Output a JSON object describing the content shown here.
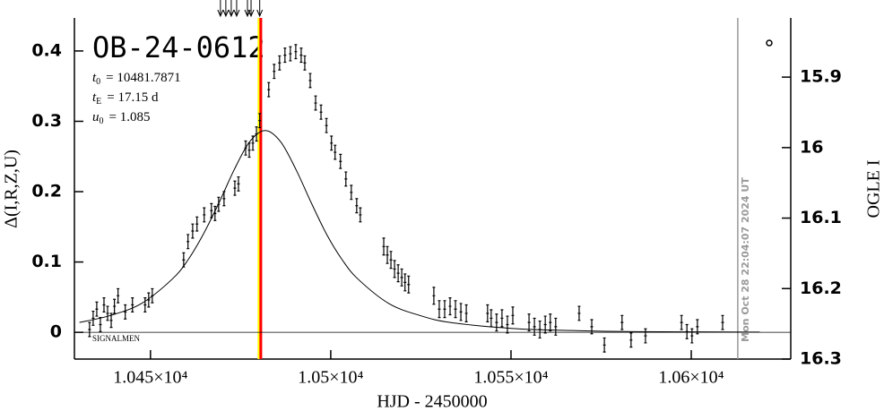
{
  "chart_data": {
    "type": "scatter",
    "title": "OB-24-0612",
    "parameters": [
      {
        "symbol": "t",
        "subscript": "0",
        "text": "= 10481.7871"
      },
      {
        "symbol": "t",
        "subscript": "E",
        "text": "= 17.15 d"
      },
      {
        "symbol": "u",
        "subscript": "0",
        "text": "= 1.085"
      }
    ],
    "source_label": "SIGNALMEN",
    "timestamp": "Mon Oct 28 22:04:07 2024 UT",
    "x_label": "HJD - 2450000",
    "y_label": "Δ(I,R,Z,U)",
    "y2_label": "OGLE I",
    "xlim": [
      10428.9,
      10627.6
    ],
    "ylim": [
      -0.038,
      0.447
    ],
    "y2lim": [
      16.3,
      15.816
    ],
    "xticks": [
      {
        "value": 10450,
        "label": "1.045×10⁴"
      },
      {
        "value": 10500,
        "label": "1.05×10⁴"
      },
      {
        "value": 10550,
        "label": "1.055×10⁴"
      },
      {
        "value": 10600,
        "label": "1.06×10⁴"
      }
    ],
    "yticks": [
      0,
      0.1,
      0.2,
      0.3,
      0.4
    ],
    "y2ticks": [
      15.9,
      16,
      16.1,
      16.2,
      16.3
    ],
    "color": "#000000",
    "x": [
      10433.1,
      10434.1,
      10435.1,
      10436.1,
      10437.1,
      10438.1,
      10439.1,
      10440.0,
      10441.0,
      10443.0,
      10445.0,
      10448.5,
      10449.5,
      10450.5,
      10459.2,
      10460.4,
      10461.7,
      10462.9,
      10464.9,
      10466.9,
      10467.9,
      10468.9,
      10470.4,
      10473.4,
      10474.4,
      10476.4,
      10477.4,
      10478.4,
      10479.4,
      10480.3,
      10482.8,
      10484.3,
      10485.8,
      10487.3,
      10488.8,
      10490.3,
      10491.8,
      10492.8,
      10494.3,
      10495.8,
      10497.3,
      10498.8,
      10500.2,
      10501.2,
      10502.7,
      10504.2,
      10505.7,
      10507.2,
      10508.2,
      10514.7,
      10515.7,
      10516.7,
      10517.7,
      10518.7,
      10519.7,
      10520.6,
      10521.6,
      10528.6,
      10530.1,
      10531.6,
      10533.1,
      10534.6,
      10536.1,
      10537.6,
      10543.5,
      10544.5,
      10546.0,
      10547.5,
      10549.0,
      10550.5,
      10555.0,
      10556.5,
      10558.0,
      10559.5,
      10560.9,
      10562.4,
      10568.9,
      10572.4,
      10575.9,
      10580.8,
      10583.3,
      10587.3,
      10597.3,
      10598.8,
      10600.2,
      10601.7,
      10608.7
    ],
    "values": [
      0.004,
      0.02,
      0.033,
      0.011,
      0.039,
      0.027,
      0.017,
      0.037,
      0.052,
      0.029,
      0.039,
      0.039,
      0.046,
      0.052,
      0.103,
      0.129,
      0.144,
      0.154,
      0.167,
      0.173,
      0.169,
      0.182,
      0.19,
      0.205,
      0.211,
      0.262,
      0.259,
      0.269,
      0.282,
      0.301,
      0.345,
      0.371,
      0.383,
      0.394,
      0.396,
      0.399,
      0.394,
      0.383,
      0.358,
      0.326,
      0.313,
      0.294,
      0.269,
      0.256,
      0.243,
      0.218,
      0.199,
      0.18,
      0.167,
      0.122,
      0.11,
      0.103,
      0.09,
      0.084,
      0.078,
      0.071,
      0.068,
      0.052,
      0.033,
      0.033,
      0.037,
      0.033,
      0.029,
      0.027,
      0.027,
      0.02,
      0.014,
      0.02,
      0.011,
      0.024,
      0.014,
      0.008,
      0.004,
      0.011,
      0.014,
      0.008,
      0.027,
      0.008,
      -0.018,
      0.014,
      -0.011,
      -0.005,
      0.014,
      0.001,
      -0.005,
      0.008,
      0.014
    ],
    "errors": [
      0.01,
      0.01,
      0.01,
      0.01,
      0.01,
      0.01,
      0.01,
      0.01,
      0.01,
      0.01,
      0.01,
      0.01,
      0.01,
      0.01,
      0.01,
      0.01,
      0.01,
      0.01,
      0.01,
      0.01,
      0.01,
      0.01,
      0.01,
      0.01,
      0.01,
      0.01,
      0.01,
      0.01,
      0.01,
      0.01,
      0.01,
      0.01,
      0.01,
      0.01,
      0.01,
      0.01,
      0.01,
      0.01,
      0.01,
      0.01,
      0.01,
      0.01,
      0.01,
      0.01,
      0.01,
      0.01,
      0.01,
      0.01,
      0.01,
      0.012,
      0.012,
      0.012,
      0.012,
      0.012,
      0.012,
      0.012,
      0.012,
      0.012,
      0.012,
      0.012,
      0.012,
      0.012,
      0.012,
      0.012,
      0.012,
      0.012,
      0.012,
      0.012,
      0.012,
      0.012,
      0.012,
      0.012,
      0.012,
      0.012,
      0.012,
      0.012,
      0.01,
      0.01,
      0.01,
      0.01,
      0.01,
      0.01,
      0.01,
      0.01,
      0.01,
      0.01,
      0.01
    ],
    "model": {
      "color": "#000000",
      "x": [
        10430.3,
        10438.9,
        10447.5,
        10456.1,
        10460.4,
        10464.6,
        10468.9,
        10473.2,
        10477.5,
        10481.8,
        10486.1,
        10490.4,
        10494.7,
        10498.9,
        10503.2,
        10507.5,
        10516.1,
        10524.7,
        10533.2,
        10550.4,
        10567.5,
        10584.7,
        10619.0
      ],
      "values": [
        0.014,
        0.024,
        0.041,
        0.076,
        0.103,
        0.139,
        0.183,
        0.231,
        0.271,
        0.287,
        0.271,
        0.231,
        0.183,
        0.139,
        0.103,
        0.076,
        0.041,
        0.024,
        0.014,
        0.0055,
        0.0025,
        0.001,
        0.0004
      ]
    },
    "event_lines": [
      {
        "x": 10480.1,
        "color": "#ffff00"
      },
      {
        "x": 10480.6,
        "color": "#ff0000"
      }
    ],
    "now_line": {
      "x": 10612.9,
      "color": "#999999"
    },
    "arrow_times": [
      10469.4,
      10470.9,
      10472.4,
      10473.9,
      10476.9,
      10477.9,
      10480.3
    ]
  }
}
